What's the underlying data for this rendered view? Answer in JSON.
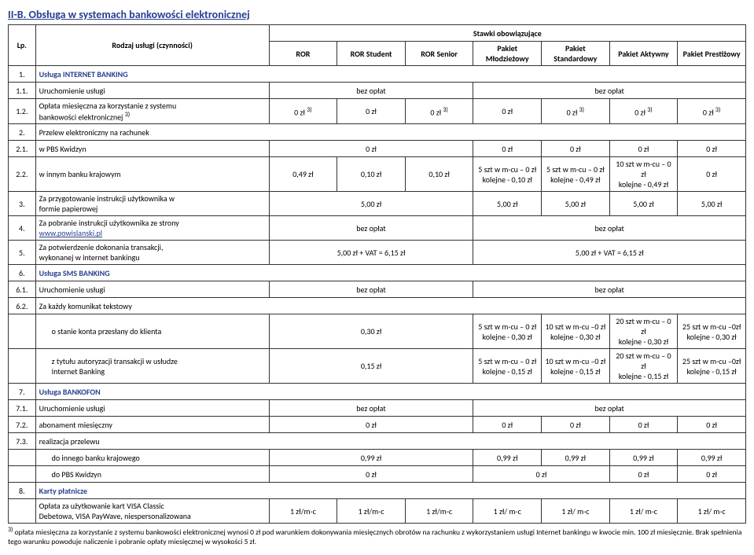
{
  "section_title": "II-B. Obsługa w systemach bankowości elektronicznej",
  "header": {
    "lp": "Lp.",
    "name": "Rodzaj usługi (czynności)",
    "stawki": "Stawki obowiązujące",
    "cols": [
      "ROR",
      "ROR Student",
      "ROR Senior",
      "Pakiet Młodzieżowy",
      "Pakiet Standardowy",
      "Pakiet Aktywny",
      "Pakiet Prestiżowy"
    ]
  },
  "s1": {
    "num": "1.",
    "title": "Usługa INTERNET BANKING",
    "r1": {
      "lp": "1.1.",
      "name": "Uruchomienie usługi",
      "v1": "bez opłat",
      "v2": "bez opłat"
    },
    "r2": {
      "lp": "1.2.",
      "name_a": "Opłata miesięczna za korzystanie z systemu",
      "name_b": "bankowości elektronicznej ",
      "sup": "3)",
      "v": [
        "0 zł ",
        "0 zł",
        "0 zł ",
        "0 zł",
        "0 zł ",
        "0 zł ",
        "0 zł "
      ],
      "sups": [
        "3)",
        "",
        "3)",
        "",
        "3)",
        "3)",
        "3)"
      ]
    }
  },
  "s2": {
    "lp": "2.",
    "name": "Przelew elektroniczny na rachunek",
    "r1": {
      "lp": "2.1.",
      "name": "w PBS Kwidzyn",
      "v1": "0 zł",
      "v": [
        "0 zł",
        "0 zł",
        "0 zł",
        "0 zł"
      ]
    },
    "r2": {
      "lp": "2.2.",
      "name": "w innym banku krajowym",
      "c": [
        "0,49 zł",
        "0,10 zł",
        "0,10 zł"
      ],
      "m": [
        [
          "5 szt w m-cu – 0 zł",
          "kolejne - 0,10 zł"
        ],
        [
          "5 szt w m-cu – 0 zł",
          "kolejne - 0,49 zł"
        ],
        [
          "10 szt w m-cu – 0 zł",
          "kolejne - 0,49 zł"
        ],
        [
          "",
          "0 zł"
        ]
      ]
    }
  },
  "s3": {
    "lp": "3.",
    "name_a": "Za przygotowanie instrukcji użytkownika w",
    "name_b": "formie papierowej",
    "v1": "5,00 zł",
    "v": [
      "5,00 zł",
      "5,00 zł",
      "5,00 zł",
      "5,00 zł"
    ]
  },
  "s4": {
    "lp": "4.",
    "name_a": "Za pobranie instrukcji użytkownika ze strony",
    "link": "www.powislanski.pl",
    "v1": "bez opłat",
    "v2": "bez opłat"
  },
  "s5": {
    "lp": "5.",
    "name_a": "Za potwierdzenie dokonania transakcji,",
    "name_b": "wykonanej w internet bankingu",
    "v1": "5,00 zł + VAT = 6,15 zł",
    "v2": "5,00 zł + VAT = 6,15 zł"
  },
  "s6": {
    "num": "6.",
    "title": "Usługa SMS BANKING",
    "r1": {
      "lp": "6.1.",
      "name": "Uruchomienie usługi",
      "v1": "bez opłat",
      "v2": "bez opłat"
    },
    "r2lp": "6.2.",
    "r2name": "Za każdy komunikat tekstowy",
    "sub1name": "o stanie konta przesłany do klienta",
    "sub1v1": "0,30 zł",
    "sub1m": [
      [
        "5 szt w m-cu – 0 zł",
        "kolejne - 0,30 zł"
      ],
      [
        "10 szt w m-cu –0 zł",
        "kolejne - 0,30 zł"
      ],
      [
        "20 szt w m-cu – 0 zł",
        "kolejne - 0,30 zł"
      ],
      [
        "25 szt w m-cu –0zł",
        "kolejne - 0,30 zł"
      ]
    ],
    "sub2name_a": "z tytułu autoryzacji transakcji w usłudze",
    "sub2name_b": "Internet Banking",
    "sub2v1": "0,15 zł",
    "sub2m": [
      [
        "5 szt w m-cu – 0 zł",
        "kolejne - 0,15 zł"
      ],
      [
        "10 szt w m-cu –0 zł",
        "kolejne - 0,15 zł"
      ],
      [
        "20 szt w m-cu – 0 zł",
        "kolejne - 0,15 zł"
      ],
      [
        "25 szt w m-cu –0zł",
        "kolejne - 0,15 zł"
      ]
    ]
  },
  "s7": {
    "num": "7.",
    "title": "Usługa BANKOFON",
    "r1": {
      "lp": "7.1.",
      "name": "Uruchomienie usługi",
      "v1": "bez opłat",
      "v2": "bez opłat"
    },
    "r2": {
      "lp": "7.2.",
      "name": "abonament miesięczny",
      "v1": "0 zł",
      "v": [
        "0 zł",
        "0 zł",
        "0 zł",
        "0 zł"
      ]
    },
    "r3": {
      "lp": "7.3.",
      "name": "realizacja przelewu"
    },
    "sub1": {
      "name": "do innego banku krajowego",
      "v1": "0,99 zł",
      "v": [
        "0,99 zł",
        "0,99 zł",
        "0,99 zł",
        "0,99 zł"
      ]
    },
    "sub2": {
      "name": "do PBS Kwidzyn",
      "v1": "0 zł",
      "v": [
        "0 zł",
        "0 zł",
        "0 zł"
      ]
    }
  },
  "s8": {
    "num": "8.",
    "title": "Karty płatnicze",
    "r1name_a": "Opłata za użytkowanie kart VISA Classic",
    "r1name_b": "Debetowa, VISA PayWave, niespersonalizowana",
    "v": [
      "1 zł/m-c",
      "1 zł/m-c",
      "1 zł/m-c",
      "1 zł/ m-c",
      "1 zł/ m-c",
      "1 zł/ m-c",
      "1 zł/ m-c"
    ]
  },
  "footnote": {
    "sup": "3)",
    "text": " opłata miesięczna za korzystanie z systemu bankowości elektronicznej wynosi 0 zł pod warunkiem dokonywania miesięcznych obrotów na rachunku z wykorzystaniem usługi Internet bankingu w kwocie min. 100 zł miesięcznie. Brak spełnienia tego warunku powoduje naliczenie i pobranie opłaty miesięcznej w wysokości 5 zł."
  }
}
